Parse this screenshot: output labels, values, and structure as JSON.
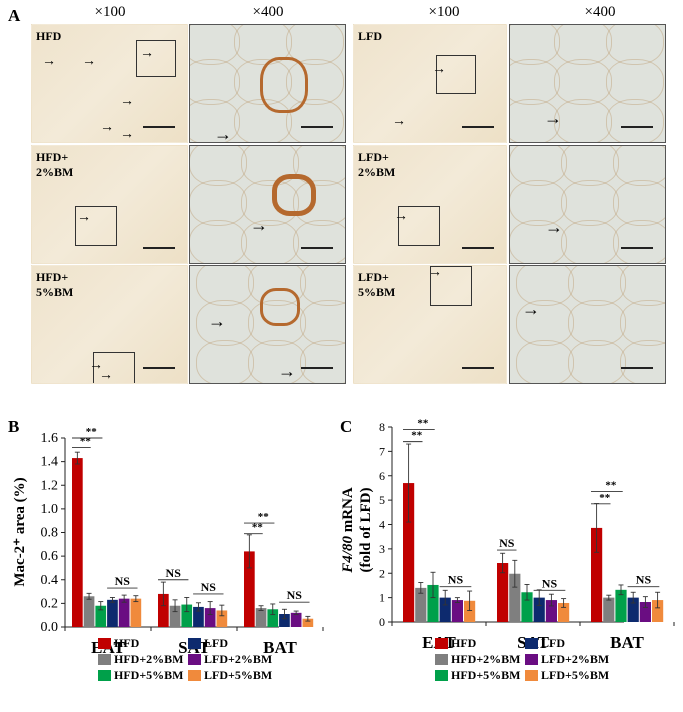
{
  "panel_a": {
    "letter": "A",
    "mag_labels": [
      "×100",
      "×400",
      "×100",
      "×400"
    ],
    "rows": [
      {
        "left_label": "HFD",
        "right_label": "LFD"
      },
      {
        "left_label": "HFD+\n2%BM",
        "right_label": "LFD+\n2%BM"
      },
      {
        "left_label": "HFD+\n5%BM",
        "right_label": "LFD+\n5%BM"
      }
    ],
    "arrow_glyph": "→"
  },
  "chart_data": [
    {
      "panel": "B",
      "type": "bar",
      "title": "",
      "xlabel": "",
      "ylabel": "Mac-2⁺ area (%)",
      "ylim": [
        0,
        1.6
      ],
      "yticks": [
        "0.0",
        "0.2",
        "0.4",
        "0.6",
        "0.8",
        "1.0",
        "1.2",
        "1.4",
        "1.6"
      ],
      "grid": false,
      "legend_position": "bottom",
      "categories": [
        "EAT",
        "SAT",
        "BAT"
      ],
      "series": [
        {
          "name": "HFD",
          "color": "#c00000",
          "values": [
            1.43,
            0.28,
            0.64
          ],
          "errors": [
            0.05,
            0.1,
            0.14
          ]
        },
        {
          "name": "HFD+2%BM",
          "color": "#7f7f7f",
          "values": [
            0.26,
            0.18,
            0.16
          ],
          "errors": [
            0.025,
            0.05,
            0.02
          ]
        },
        {
          "name": "HFD+5%BM",
          "color": "#00a04a",
          "values": [
            0.18,
            0.19,
            0.15
          ],
          "errors": [
            0.035,
            0.06,
            0.045
          ]
        },
        {
          "name": "LFD",
          "color": "#0d2a6e",
          "values": [
            0.23,
            0.17,
            0.11
          ],
          "errors": [
            0.02,
            0.035,
            0.04
          ]
        },
        {
          "name": "LFD+2%BM",
          "color": "#6a0d82",
          "values": [
            0.24,
            0.16,
            0.12
          ],
          "errors": [
            0.03,
            0.055,
            0.015
          ]
        },
        {
          "name": "LFD+5%BM",
          "color": "#f08a3c",
          "values": [
            0.24,
            0.14,
            0.07
          ],
          "errors": [
            0.025,
            0.045,
            0.02
          ]
        }
      ],
      "annotations": [
        {
          "group": "EAT",
          "text": "**",
          "from": 0,
          "to": 1,
          "y": 1.52
        },
        {
          "group": "EAT",
          "text": "**",
          "from": 0,
          "to": 2,
          "y": 1.6
        },
        {
          "group": "EAT",
          "text": "NS",
          "from": 3,
          "to": 5,
          "y": 0.33
        },
        {
          "group": "SAT",
          "text": "NS",
          "from": 0,
          "to": 2,
          "y": 0.4
        },
        {
          "group": "SAT",
          "text": "NS",
          "from": 3,
          "to": 5,
          "y": 0.28
        },
        {
          "group": "BAT",
          "text": "**",
          "from": 0,
          "to": 1,
          "y": 0.79
        },
        {
          "group": "BAT",
          "text": "**",
          "from": 0,
          "to": 2,
          "y": 0.88
        },
        {
          "group": "BAT",
          "text": "NS",
          "from": 3,
          "to": 5,
          "y": 0.21
        }
      ]
    },
    {
      "panel": "C",
      "type": "bar",
      "title": "",
      "xlabel": "",
      "ylabel": "F4/80 mRNA (fold of LFD)",
      "ylabel_italic": "F4/80",
      "ylabel_line1_rest": " mRNA",
      "ylabel_line2": "(fold of LFD)",
      "ylim": [
        0,
        8
      ],
      "yticks": [
        "0",
        "1",
        "2",
        "3",
        "4",
        "5",
        "6",
        "7",
        "8"
      ],
      "grid": false,
      "legend_position": "bottom",
      "categories": [
        "EAT",
        "SAT",
        "BAT"
      ],
      "series": [
        {
          "name": "HFD",
          "color": "#c00000",
          "values": [
            5.7,
            2.42,
            3.86
          ],
          "errors": [
            1.6,
            0.4,
            1.0
          ]
        },
        {
          "name": "HFD+2%BM",
          "color": "#7f7f7f",
          "values": [
            1.4,
            1.98,
            1.0
          ],
          "errors": [
            0.22,
            0.55,
            0.1
          ]
        },
        {
          "name": "HFD+5%BM",
          "color": "#00a04a",
          "values": [
            1.52,
            1.22,
            1.32
          ],
          "errors": [
            0.52,
            0.32,
            0.2
          ]
        },
        {
          "name": "LFD",
          "color": "#0d2a6e",
          "values": [
            1.0,
            1.0,
            1.0
          ],
          "errors": [
            0.3,
            0.32,
            0.22
          ]
        },
        {
          "name": "LFD+2%BM",
          "color": "#6a0d82",
          "values": [
            0.9,
            0.9,
            0.82
          ],
          "errors": [
            0.1,
            0.24,
            0.22
          ]
        },
        {
          "name": "LFD+5%BM",
          "color": "#f08a3c",
          "values": [
            0.87,
            0.78,
            0.9
          ],
          "errors": [
            0.4,
            0.18,
            0.32
          ]
        }
      ],
      "annotations": [
        {
          "group": "EAT",
          "text": "**",
          "from": 0,
          "to": 1,
          "y": 7.4
        },
        {
          "group": "EAT",
          "text": "**",
          "from": 0,
          "to": 2,
          "y": 7.9
        },
        {
          "group": "EAT",
          "text": "NS",
          "from": 3,
          "to": 5,
          "y": 1.45
        },
        {
          "group": "SAT",
          "text": "NS",
          "from": 0,
          "to": 1,
          "y": 2.95
        },
        {
          "group": "SAT",
          "text": "NS",
          "from": 3,
          "to": 5,
          "y": 1.3
        },
        {
          "group": "BAT",
          "text": "**",
          "from": 0,
          "to": 1,
          "y": 4.85
        },
        {
          "group": "BAT",
          "text": "**",
          "from": 0,
          "to": 2,
          "y": 5.35
        },
        {
          "group": "BAT",
          "text": "NS",
          "from": 3,
          "to": 5,
          "y": 1.45
        }
      ]
    }
  ]
}
